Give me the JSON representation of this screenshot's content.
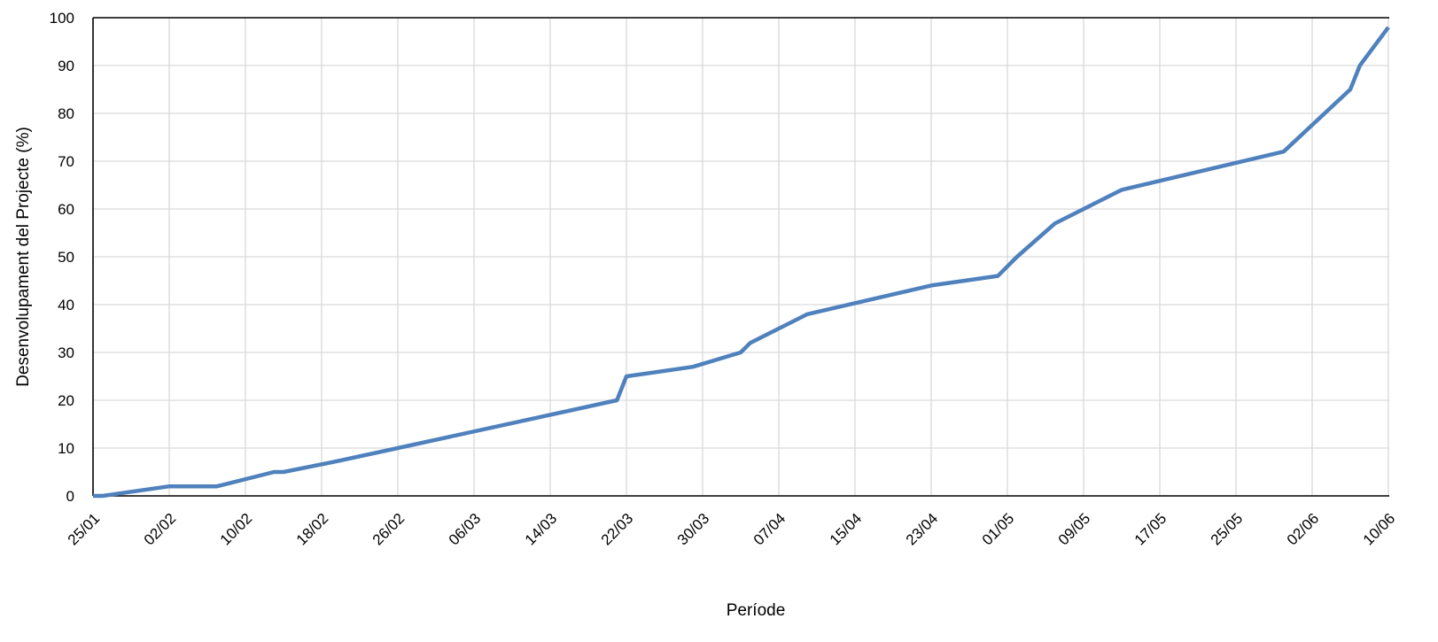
{
  "chart_data": {
    "type": "line",
    "title": "",
    "xlabel": "Període",
    "ylabel": "Desenvolupament del Projecte (%)",
    "ylim": [
      0,
      100
    ],
    "yticks": [
      "0",
      "10",
      "20",
      "30",
      "40",
      "50",
      "60",
      "70",
      "80",
      "90",
      "100"
    ],
    "xticks": [
      "25/01",
      "02/02",
      "10/02",
      "18/02",
      "26/02",
      "06/03",
      "14/03",
      "22/03",
      "30/03",
      "07/04",
      "15/04",
      "23/04",
      "01/05",
      "09/05",
      "17/05",
      "25/05",
      "02/06",
      "10/06"
    ],
    "grid": true,
    "legend": "none",
    "line_color": "#4F81BD",
    "series": [
      {
        "x": [
          "25/01",
          "26/01",
          "02/02",
          "07/02",
          "13/02",
          "14/02",
          "19/02",
          "26/02",
          "21/03",
          "22/03",
          "29/03",
          "03/04",
          "04/04",
          "10/04",
          "23/04",
          "30/04",
          "02/05",
          "06/05",
          "13/05",
          "30/05",
          "06/06",
          "07/06",
          "10/06"
        ],
        "values": [
          0,
          0,
          2,
          2,
          5,
          5,
          7,
          10,
          20,
          25,
          27,
          30,
          32,
          38,
          44,
          46,
          50,
          57,
          64,
          72,
          85,
          90,
          98
        ]
      }
    ]
  }
}
